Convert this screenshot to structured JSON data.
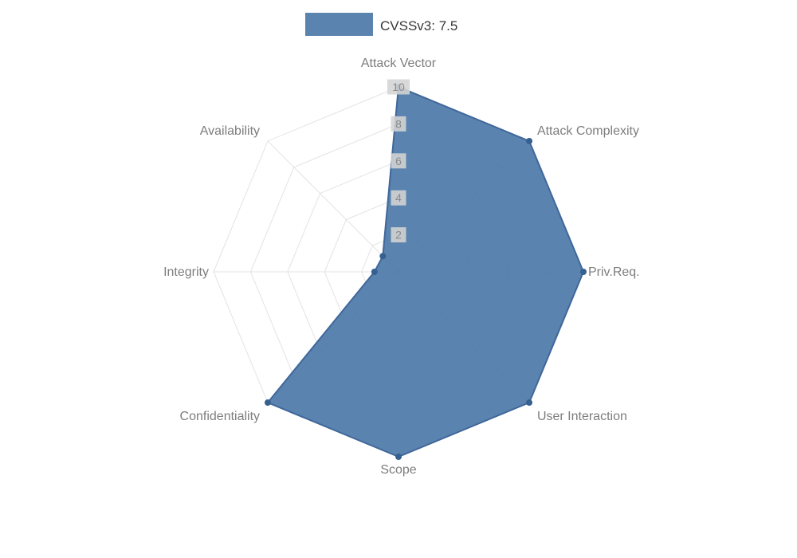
{
  "legend": {
    "label": "CVSSv3: 7.5"
  },
  "chart_data": {
    "type": "radar",
    "title": "",
    "categories": [
      "Attack Vector",
      "Attack Complexity",
      "Priv.Req.",
      "User Interaction",
      "Scope",
      "Confidentiality",
      "Integrity",
      "Availability"
    ],
    "series": [
      {
        "name": "CVSSv3: 7.5",
        "values": [
          10,
          10,
          10,
          10,
          10,
          10,
          1.3,
          1.2
        ]
      }
    ],
    "rmin": 0,
    "rmax": 10,
    "ticks": [
      2,
      4,
      6,
      8,
      10
    ],
    "grid": true,
    "legend_position": "top",
    "colors": {
      "fill": "#4c78a8",
      "fill_opacity": 0.92,
      "border": "#40679a",
      "point": "#36608f",
      "grid": "#e3e3e3",
      "tick_backdrop": "#d4d4d4",
      "tick_text": "#8b8b8b",
      "axis_label": "#7d7d7d",
      "legend_text": "#373737"
    }
  }
}
